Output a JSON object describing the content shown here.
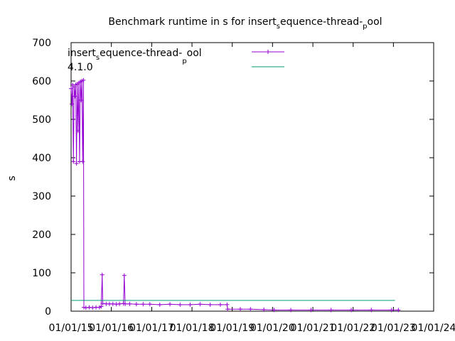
{
  "chart_data": {
    "type": "line",
    "title_parts": [
      "Benchmark runtime in s for insert",
      "s",
      "equence-thread-",
      "p",
      "ool"
    ],
    "ylabel": "s",
    "xlabel": "",
    "xlim": [
      "2015-01-01",
      "2024-01-01"
    ],
    "ylim": [
      0,
      700
    ],
    "y_ticks": [
      0,
      100,
      200,
      300,
      400,
      500,
      600,
      700
    ],
    "x_ticks": [
      "2015-01-01",
      "2016-01-01",
      "2017-01-01",
      "2018-01-01",
      "2019-01-01",
      "2020-01-01",
      "2021-01-01",
      "2022-01-01",
      "2023-01-01",
      "2024-01-01"
    ],
    "x_tick_labels": [
      "01/01/15",
      "01/01/16",
      "01/01/17",
      "01/01/18",
      "01/01/19",
      "01/01/20",
      "01/01/21",
      "01/01/22",
      "01/01/23",
      "01/01/24"
    ],
    "grid": false,
    "legend_position": "top-left",
    "series": [
      {
        "name_parts": [
          "insert",
          "s",
          "equence-thread-",
          "p",
          "ool"
        ],
        "color": "#9400d3",
        "style": "linespoints",
        "marker": "plus",
        "points": [
          [
            "2015-01-01",
            580
          ],
          [
            "2015-01-08",
            540
          ],
          [
            "2015-01-15",
            590
          ],
          [
            "2015-01-22",
            390
          ],
          [
            "2015-01-29",
            585
          ],
          [
            "2015-02-05",
            560
          ],
          [
            "2015-02-12",
            590
          ],
          [
            "2015-02-19",
            385
          ],
          [
            "2015-02-26",
            592
          ],
          [
            "2015-03-05",
            470
          ],
          [
            "2015-03-12",
            595
          ],
          [
            "2015-03-19",
            390
          ],
          [
            "2015-03-26",
            598
          ],
          [
            "2015-04-02",
            550
          ],
          [
            "2015-04-09",
            600
          ],
          [
            "2015-04-16",
            390
          ],
          [
            "2015-04-23",
            602
          ],
          [
            "2015-04-27",
            10
          ],
          [
            "2015-05-15",
            9
          ],
          [
            "2015-06-15",
            10
          ],
          [
            "2015-07-15",
            9
          ],
          [
            "2015-08-15",
            10
          ],
          [
            "2015-09-15",
            10
          ],
          [
            "2015-10-01",
            12
          ],
          [
            "2015-10-10",
            95
          ],
          [
            "2015-10-15",
            20
          ],
          [
            "2015-11-15",
            19
          ],
          [
            "2015-12-15",
            19
          ],
          [
            "2016-01-15",
            19
          ],
          [
            "2016-02-15",
            18
          ],
          [
            "2016-03-15",
            19
          ],
          [
            "2016-04-20",
            20
          ],
          [
            "2016-04-27",
            93
          ],
          [
            "2016-05-05",
            19
          ],
          [
            "2016-06-15",
            19
          ],
          [
            "2016-08-15",
            18
          ],
          [
            "2016-10-15",
            18
          ],
          [
            "2016-12-15",
            18
          ],
          [
            "2017-03-15",
            17
          ],
          [
            "2017-06-15",
            18
          ],
          [
            "2017-09-15",
            17
          ],
          [
            "2017-12-15",
            17
          ],
          [
            "2018-03-15",
            18
          ],
          [
            "2018-06-15",
            17
          ],
          [
            "2018-09-15",
            17
          ],
          [
            "2018-11-15",
            17
          ],
          [
            "2018-11-20",
            5
          ],
          [
            "2019-03-15",
            5
          ],
          [
            "2019-06-15",
            5
          ],
          [
            "2019-10-15",
            4
          ],
          [
            "2020-01-15",
            3
          ],
          [
            "2020-06-15",
            3
          ],
          [
            "2020-12-15",
            3
          ],
          [
            "2021-06-15",
            3
          ],
          [
            "2021-12-15",
            3
          ],
          [
            "2022-06-15",
            3
          ],
          [
            "2022-12-15",
            3
          ],
          [
            "2023-02-15",
            3
          ]
        ]
      },
      {
        "name": "4.1.0",
        "color": "#009e73",
        "style": "lines",
        "points": [
          [
            "2015-01-01",
            28
          ],
          [
            "2023-01-15",
            28
          ]
        ]
      }
    ]
  }
}
